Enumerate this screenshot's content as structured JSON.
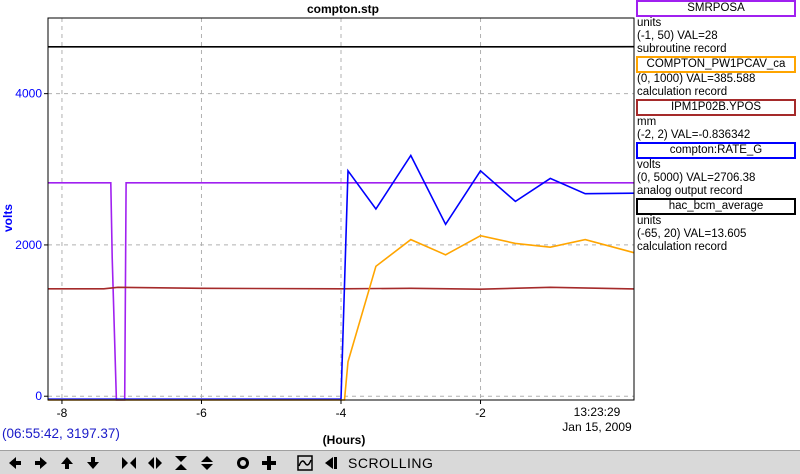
{
  "chart_data": {
    "type": "line",
    "title": "compton.stp",
    "xlabel": "(Hours)",
    "ylabel": "volts",
    "xlim": [
      -8.2,
      0.2
    ],
    "ylim": [
      -50,
      5000
    ],
    "x_ticks": [
      -8,
      -6,
      -4,
      -2
    ],
    "x_tick_labels": [
      "-8",
      "-6",
      "-4",
      "-2"
    ],
    "end_time": "13:23:29",
    "end_date": "Jan 15, 2009",
    "y_ticks": [
      0,
      2000,
      4000
    ],
    "y_tick_labels": [
      "0",
      "2000",
      "4000"
    ],
    "grid": true,
    "series": [
      {
        "name": "SMRPOSA",
        "color": "#a020f0",
        "range": [
          -1,
          50
        ],
        "points": [
          [
            -8.2,
            28
          ],
          [
            -7.3,
            28
          ],
          [
            -7.28,
            18
          ],
          [
            -7.22,
            -1
          ],
          [
            -7.1,
            -1
          ],
          [
            -7.08,
            28
          ],
          [
            0.2,
            28
          ]
        ]
      },
      {
        "name": "COMPTON_PW1PCAV_ca",
        "color": "#ffa500",
        "range": [
          0,
          1000
        ],
        "points": [
          [
            -8.2,
            0
          ],
          [
            -3.95,
            0
          ],
          [
            -3.9,
            100
          ],
          [
            -3.5,
            350
          ],
          [
            -3.0,
            420
          ],
          [
            -2.5,
            380
          ],
          [
            -2.0,
            430
          ],
          [
            -1.5,
            410
          ],
          [
            -1.0,
            400
          ],
          [
            -0.5,
            420
          ],
          [
            0.2,
            385.588
          ]
        ]
      },
      {
        "name": "IPM1P02B.YPOS",
        "color": "#a52a2a",
        "range": [
          -2,
          2
        ],
        "points": [
          [
            -8.2,
            -0.836
          ],
          [
            -7.4,
            -0.836
          ],
          [
            -7.2,
            -0.82
          ],
          [
            -6.0,
            -0.83
          ],
          [
            -4.0,
            -0.836
          ],
          [
            -3.0,
            -0.83
          ],
          [
            -2.0,
            -0.84
          ],
          [
            -1.0,
            -0.82
          ],
          [
            0.2,
            -0.836342
          ]
        ]
      },
      {
        "name": "compton:RATE_G",
        "color": "#0000ff",
        "range": [
          0,
          5000
        ],
        "points": [
          [
            -8.2,
            10
          ],
          [
            -4.0,
            10
          ],
          [
            -3.9,
            3000
          ],
          [
            -3.5,
            2500
          ],
          [
            -3.0,
            3200
          ],
          [
            -2.5,
            2300
          ],
          [
            -2.0,
            3000
          ],
          [
            -1.5,
            2600
          ],
          [
            -1.0,
            2900
          ],
          [
            -0.5,
            2700
          ],
          [
            0.2,
            2706.38
          ]
        ]
      },
      {
        "name": "hac_bcm_average",
        "color": "#000000",
        "range": [
          -65,
          20
        ],
        "points": [
          [
            -8.2,
            13.6
          ],
          [
            -7.0,
            13.6
          ],
          [
            -6.0,
            13.6
          ],
          [
            -5.0,
            13.6
          ],
          [
            -4.0,
            13.6
          ],
          [
            -3.0,
            13.6
          ],
          [
            -2.0,
            13.6
          ],
          [
            -1.0,
            13.6
          ],
          [
            0.2,
            13.605
          ]
        ]
      }
    ],
    "legend": [
      {
        "name": "SMRPOSA",
        "unit": "units",
        "range_val": "(-1, 50) VAL=28",
        "record": "subroutine record",
        "color": "#a020f0",
        "fill": "#ffffff"
      },
      {
        "name": "COMPTON_PW1PCAV_ca",
        "unit": "",
        "range_val": "(0, 1000) VAL=385.588",
        "record": "calculation record",
        "color": "#ffa500",
        "fill": "#ffffff"
      },
      {
        "name": "IPM1P02B.YPOS",
        "unit": "mm",
        "range_val": "(-2, 2) VAL=-0.836342",
        "record": "",
        "color": "#a52a2a",
        "fill": "#ffffff"
      },
      {
        "name": "compton:RATE_G",
        "unit": "volts",
        "range_val": "(0, 5000) VAL=2706.38",
        "record": "analog output record",
        "color": "#0000ff",
        "fill": "#ffffff"
      },
      {
        "name": "hac_bcm_average",
        "unit": "units",
        "range_val": "(-65, 20) VAL=13.605",
        "record": "calculation record",
        "color": "#000000",
        "fill": "#ffffff"
      }
    ],
    "legend_placement": "right"
  },
  "status": {
    "cursor_readout": "(06:55:42, 3197.37)"
  },
  "toolbar": {
    "mode_label": "SCROLLING",
    "buttons": [
      "arrow-left-icon",
      "arrow-right-icon",
      "arrow-up-icon",
      "arrow-down-icon",
      "zoom-in-x-icon",
      "zoom-out-x-icon",
      "zoom-in-y-icon",
      "zoom-out-y-icon",
      "reset-icon",
      "add-icon",
      "autoscale-icon",
      "back-icon"
    ]
  }
}
